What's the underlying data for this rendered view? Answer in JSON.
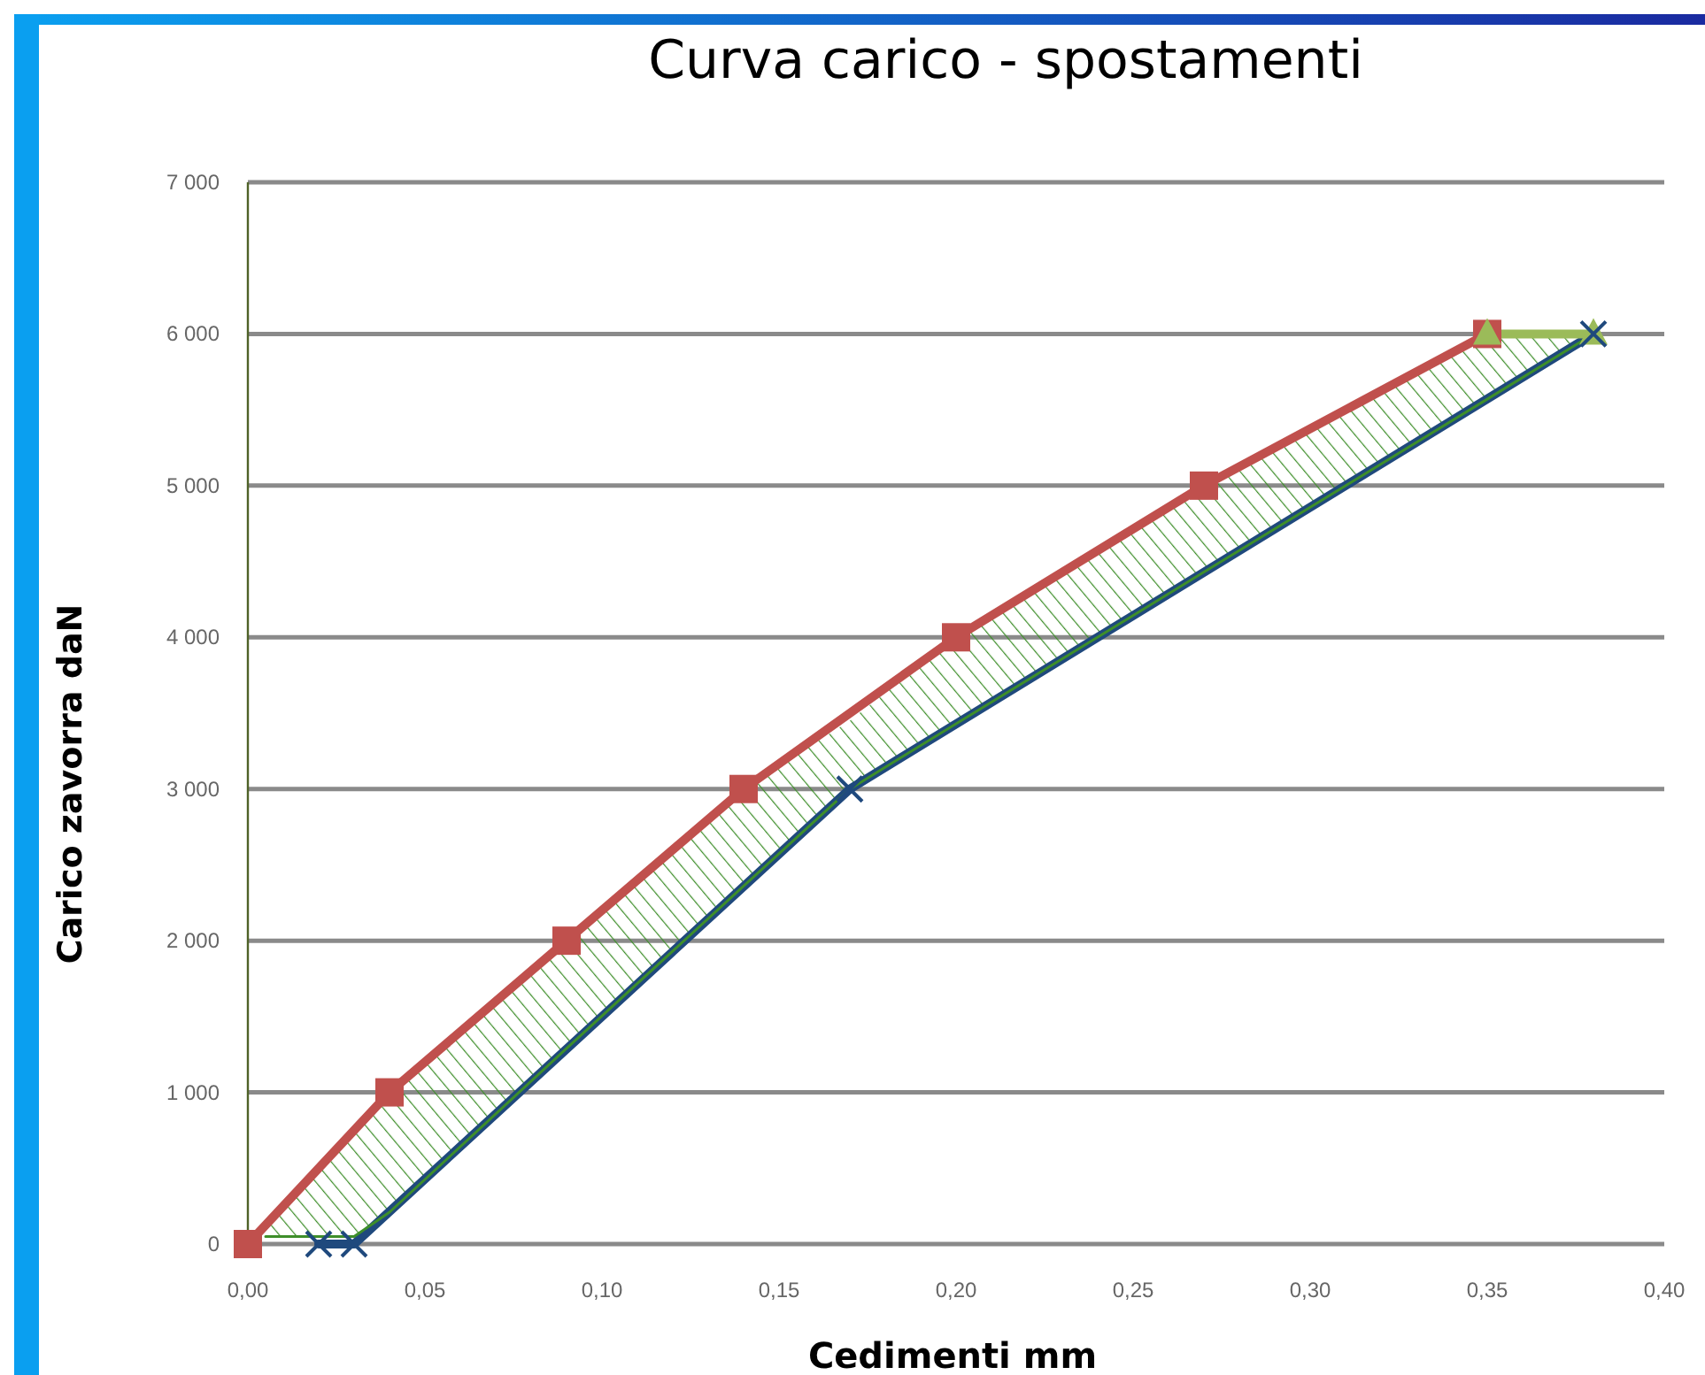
{
  "chart_data": {
    "type": "line",
    "title": "Curva carico - spostamenti",
    "xlabel": "Cedimenti mm",
    "ylabel": "Carico zavorra  daN",
    "xlim": [
      0,
      0.4
    ],
    "xticks": [
      {
        "value": 0,
        "label": "0,00"
      },
      {
        "value": 0.05,
        "label": "0,05"
      },
      {
        "value": 0.1,
        "label": "0,10"
      },
      {
        "value": 0.15,
        "label": "0,15"
      },
      {
        "value": 0.2,
        "label": "0,20"
      },
      {
        "value": 0.25,
        "label": "0,25"
      },
      {
        "value": 0.3,
        "label": "0,30"
      },
      {
        "value": 0.35,
        "label": "0,35"
      },
      {
        "value": 0.4,
        "label": "0,40"
      }
    ],
    "ylim": [
      0,
      7000
    ],
    "yticks": [
      0,
      {
        "value": 1000,
        "label": "1 000"
      },
      {
        "value": 2000,
        "label": "2 000"
      },
      {
        "value": 3000,
        "label": "3 000"
      },
      {
        "value": 4000,
        "label": "4 000"
      },
      {
        "value": 5000,
        "label": "5 000"
      },
      {
        "value": 6000,
        "label": "6 000"
      },
      {
        "value": 7000,
        "label": "7 000"
      }
    ],
    "grid": "y",
    "legend": false,
    "line_style": "solid",
    "series": [
      {
        "color": "#1f497d",
        "marker": "cross",
        "x": [
          0.02,
          0.03,
          0.17,
          0.38
        ],
        "values": [
          0,
          0,
          3000,
          6000
        ]
      },
      {
        "color": "#3e8e2a",
        "x": [
          0.005,
          0.03,
          0.04,
          0.09,
          0.14,
          0.17,
          0.2,
          0.27,
          0.35,
          0.38
        ],
        "values": [
          50,
          50,
          210,
          1290,
          2360,
          3000,
          3430,
          4430,
          5570,
          6000
        ],
        "lower": [
          50,
          50,
          210,
          1290,
          2360,
          3000,
          3430,
          4430,
          5570,
          6000
        ],
        "upper": [
          120,
          750,
          1000,
          2000,
          3000,
          3450,
          4000,
          5000,
          6000,
          6000
        ]
      },
      {
        "color": "#c0504d",
        "marker": "square",
        "x": [
          0,
          0.04,
          0.09,
          0.14,
          0.2,
          0.27,
          0.35
        ],
        "values": [
          0,
          1000,
          2000,
          3000,
          4000,
          5000,
          6000
        ]
      },
      {
        "color": "#9bbb59",
        "marker": "triangle",
        "x": [
          0.35,
          0.38
        ],
        "values": [
          6000,
          6000
        ]
      }
    ]
  }
}
